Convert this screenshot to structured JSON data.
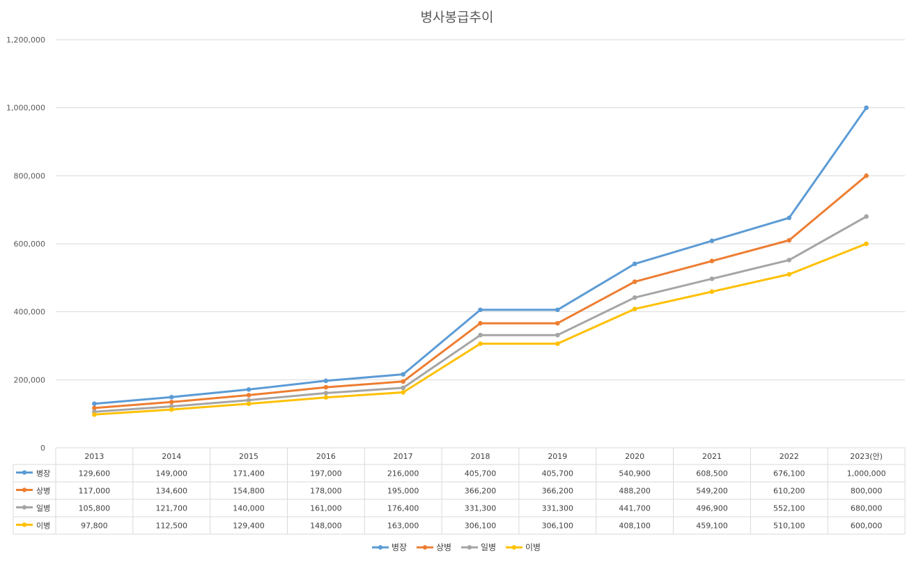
{
  "chart_data": {
    "type": "line",
    "title": "병사봉급추이",
    "xlabel": "",
    "ylabel": "",
    "categories": [
      "2013",
      "2014",
      "2015",
      "2016",
      "2017",
      "2018",
      "2019",
      "2020",
      "2021",
      "2022",
      "2023(안)"
    ],
    "ylim": [
      0,
      1200000
    ],
    "yticks": [
      "0",
      "200,000",
      "400,000",
      "600,000",
      "800,000",
      "1,000,000",
      "1,200,000"
    ],
    "grid": true,
    "legend_position": "bottom",
    "series": [
      {
        "name": "병장",
        "color": "#5b9bd5",
        "values": [
          129600,
          149000,
          171400,
          197000,
          216000,
          405700,
          405700,
          540900,
          608500,
          676100,
          1000000
        ],
        "labels": [
          "129,600",
          "149,000",
          "171,400",
          "197,000",
          "216,000",
          "405,700",
          "405,700",
          "540,900",
          "608,500",
          "676,100",
          "1,000,000"
        ]
      },
      {
        "name": "상병",
        "color": "#ed7d31",
        "values": [
          117000,
          134600,
          154800,
          178000,
          195000,
          366200,
          366200,
          488200,
          549200,
          610200,
          800000
        ],
        "labels": [
          "117,000",
          "134,600",
          "154,800",
          "178,000",
          "195,000",
          "366,200",
          "366,200",
          "488,200",
          "549,200",
          "610,200",
          "800,000"
        ]
      },
      {
        "name": "일병",
        "color": "#a5a5a5",
        "values": [
          105800,
          121700,
          140000,
          161000,
          176400,
          331300,
          331300,
          441700,
          496900,
          552100,
          680000
        ],
        "labels": [
          "105,800",
          "121,700",
          "140,000",
          "161,000",
          "176,400",
          "331,300",
          "331,300",
          "441,700",
          "496,900",
          "552,100",
          "680,000"
        ]
      },
      {
        "name": "이병",
        "color": "#ffc000",
        "values": [
          97800,
          112500,
          129400,
          148000,
          163000,
          306100,
          306100,
          408100,
          459100,
          510100,
          600000
        ],
        "labels": [
          "97,800",
          "112,500",
          "129,400",
          "148,000",
          "163,000",
          "306,100",
          "306,100",
          "408,100",
          "459,100",
          "510,100",
          "600,000"
        ]
      }
    ]
  }
}
